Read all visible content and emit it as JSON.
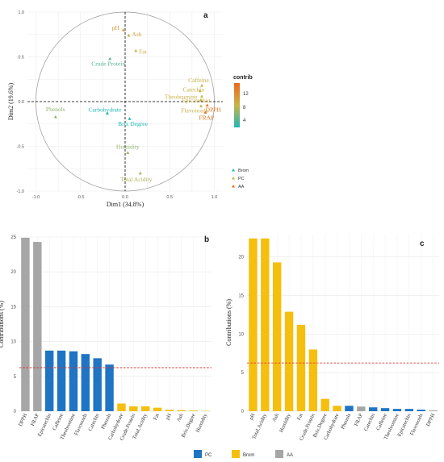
{
  "colors": {
    "pc": "#1f74c4",
    "brom": "#f5bf0f",
    "aa": "#a6a6a6",
    "mean_line": "#e03030",
    "contrib_low": "#20b5b5",
    "contrib_mid": "#c9b34a",
    "contrib_high": "#e86a1c"
  },
  "chart_data": [
    {
      "panel": "a",
      "type": "scatter",
      "xlabel": "Dim1 (34.8%)",
      "ylabel": "Dim2 (19.6%)",
      "xlim": [
        -1.0,
        1.0
      ],
      "ylim": [
        -1.0,
        1.0
      ],
      "xticks": [
        "-1.0",
        "-0.5",
        "0.0",
        "0.5",
        "1.0"
      ],
      "yticks": [
        "-1.0",
        "-0.5",
        "0.0",
        "0.5",
        "1.0"
      ],
      "circle": true,
      "grid": true,
      "legend_title": "contrib",
      "legend_ticks": [
        "12",
        "8",
        "4"
      ],
      "groups": [
        "Brom",
        "PC",
        "AA"
      ],
      "variables": [
        {
          "name": "pH",
          "x": -0.02,
          "y": 0.8,
          "contrib": 10
        },
        {
          "name": "Ash",
          "x": 0.04,
          "y": 0.74,
          "contrib": 9
        },
        {
          "name": "Fat",
          "x": 0.12,
          "y": 0.57,
          "contrib": 8
        },
        {
          "name": "Crude Protein",
          "x": -0.17,
          "y": 0.48,
          "contrib": 4
        },
        {
          "name": "Caffeine",
          "x": 0.86,
          "y": 0.18,
          "contrib": 8
        },
        {
          "name": "Catechin",
          "x": 0.84,
          "y": 0.12,
          "contrib": 8
        },
        {
          "name": "Theobromine",
          "x": 0.86,
          "y": 0.06,
          "contrib": 8
        },
        {
          "name": "Epicatechin",
          "x": 0.85,
          "y": 0.02,
          "contrib": 8
        },
        {
          "name": "DPPH",
          "x": 0.92,
          "y": -0.04,
          "contrib": 13
        },
        {
          "name": "Flavonoids",
          "x": 0.85,
          "y": -0.05,
          "contrib": 8
        },
        {
          "name": "FRAP",
          "x": 0.9,
          "y": -0.12,
          "contrib": 13
        },
        {
          "name": "Phenols",
          "x": -0.78,
          "y": -0.17,
          "contrib": 6
        },
        {
          "name": "Carbohydrate",
          "x": -0.2,
          "y": -0.13,
          "contrib": 2
        },
        {
          "name": "Brix Degree",
          "x": 0.05,
          "y": -0.19,
          "contrib": 2
        },
        {
          "name": "Humidity",
          "x": 0.03,
          "y": -0.57,
          "contrib": 6
        },
        {
          "name": "Total Acidity",
          "x": 0.17,
          "y": -0.8,
          "contrib": 7
        }
      ]
    },
    {
      "panel": "b",
      "type": "bar",
      "ylabel": "Contributions (%)",
      "ylim": [
        0,
        25
      ],
      "yticks": [
        "0",
        "5",
        "10",
        "15",
        "20",
        "25"
      ],
      "mean_line": 6.25,
      "categories": [
        "DPPH",
        "FRAP",
        "Epicatechin",
        "Caffeine",
        "Theobromine",
        "Flavonoids",
        "Catechin",
        "Phenols",
        "Carbohydrate",
        "Crude.Protein",
        "Total.Acidity",
        "Fat",
        "pH",
        "Ash",
        "Brix.Degree",
        "Humidity"
      ],
      "values": [
        24.9,
        24.3,
        8.7,
        8.7,
        8.6,
        8.2,
        7.6,
        6.7,
        1.1,
        0.7,
        0.7,
        0.5,
        0.2,
        0.15,
        0.1,
        0.05
      ],
      "groups": [
        "AA",
        "AA",
        "PC",
        "PC",
        "PC",
        "PC",
        "PC",
        "PC",
        "Brom",
        "Brom",
        "Brom",
        "Brom",
        "Brom",
        "Brom",
        "Brom",
        "Brom"
      ]
    },
    {
      "panel": "c",
      "type": "bar",
      "ylabel": "Contributions (%)",
      "ylim": [
        0,
        23
      ],
      "yticks": [
        "0",
        "5",
        "10",
        "15",
        "20"
      ],
      "mean_line": 6.25,
      "categories": [
        "pH",
        "Total.Acidity",
        "Ash",
        "Humidity",
        "Fat",
        "Crude.Protein",
        "Brix.Degree",
        "Carbohydrate",
        "Phenols",
        "FRAP",
        "Catechin",
        "Caffeine",
        "Theobromine",
        "Epicatechin",
        "Flavonoids",
        "DPPH"
      ],
      "values": [
        22.4,
        22.4,
        19.3,
        12.9,
        11.2,
        8.0,
        1.6,
        0.7,
        0.7,
        0.6,
        0.5,
        0.4,
        0.3,
        0.3,
        0.2,
        0.1
      ],
      "groups": [
        "Brom",
        "Brom",
        "Brom",
        "Brom",
        "Brom",
        "Brom",
        "Brom",
        "Brom",
        "PC",
        "AA",
        "PC",
        "PC",
        "PC",
        "PC",
        "PC",
        "AA"
      ]
    }
  ],
  "panel_labels": [
    "a",
    "b",
    "c"
  ],
  "bottom_legend": [
    {
      "key": "PC",
      "label": "PC"
    },
    {
      "key": "Brom",
      "label": "Brom"
    },
    {
      "key": "AA",
      "label": "AA"
    }
  ]
}
